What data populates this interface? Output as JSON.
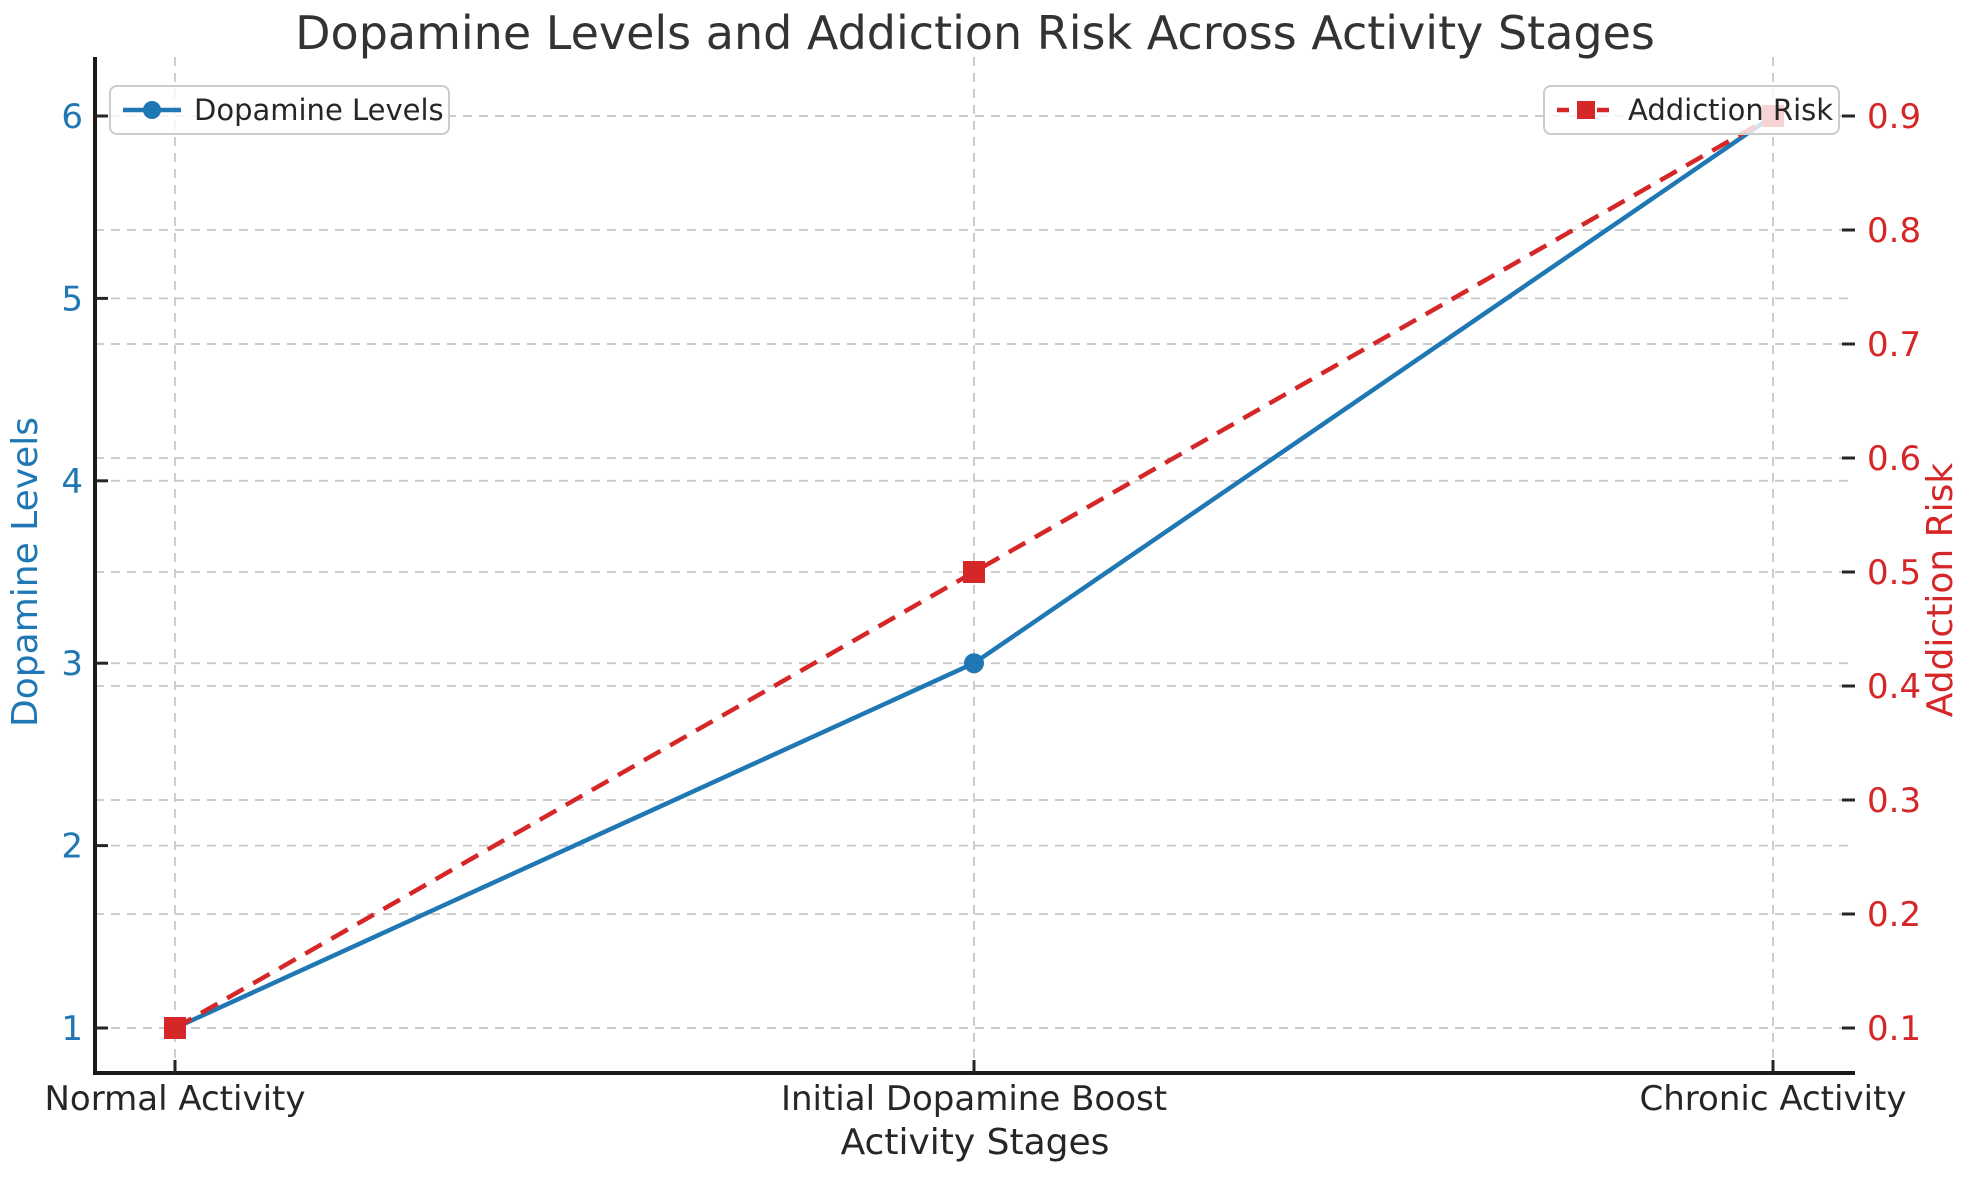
{
  "title": "Dopamine Levels and Addiction Risk Across Activity Stages",
  "chart_data": {
    "type": "line",
    "title": "Dopamine Levels and Addiction Risk Across Activity Stages",
    "categories": [
      "Normal Activity",
      "Initial Dopamine Boost",
      "Chronic Activity"
    ],
    "xlabel": "Activity Stages",
    "grid": true,
    "legend_positions": [
      "upper left",
      "upper right"
    ],
    "series": [
      {
        "name": "Dopamine Levels",
        "axis": "left",
        "values": [
          1,
          3,
          6
        ],
        "color": "#1f77b4",
        "style": "solid",
        "marker": "circle"
      },
      {
        "name": "Addiction Risk",
        "axis": "right",
        "values": [
          0.1,
          0.5,
          0.9
        ],
        "color": "#d62728",
        "style": "dashed",
        "marker": "square"
      }
    ],
    "left_axis": {
      "label": "Dopamine Levels",
      "color": "#1f77b4",
      "ylim": [
        0.75,
        6.32
      ],
      "ticks": [
        {
          "value": 1,
          "label": "1"
        },
        {
          "value": 2,
          "label": "2"
        },
        {
          "value": 3,
          "label": "3"
        },
        {
          "value": 4,
          "label": "4"
        },
        {
          "value": 5,
          "label": "5"
        },
        {
          "value": 6,
          "label": "6"
        }
      ]
    },
    "right_axis": {
      "label": "Addiction Risk",
      "color": "#d62728",
      "ylim": [
        0.06,
        0.95
      ],
      "ticks": [
        {
          "value": 0.1,
          "label": "0.1"
        },
        {
          "value": 0.2,
          "label": "0.2"
        },
        {
          "value": 0.3,
          "label": "0.3"
        },
        {
          "value": 0.4,
          "label": "0.4"
        },
        {
          "value": 0.5,
          "label": "0.5"
        },
        {
          "value": 0.6,
          "label": "0.6"
        },
        {
          "value": 0.7,
          "label": "0.7"
        },
        {
          "value": 0.8,
          "label": "0.8"
        },
        {
          "value": 0.9,
          "label": "0.9"
        }
      ]
    }
  }
}
